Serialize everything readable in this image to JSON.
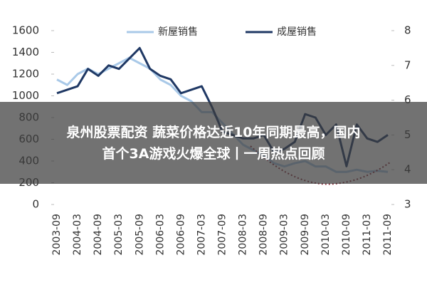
{
  "chart_data": {
    "type": "line",
    "categories": [
      "2003-09",
      null,
      "2004-03",
      null,
      "2004-09",
      null,
      "2005-03",
      null,
      "2005-09",
      null,
      "2006-03",
      null,
      "2006-09",
      null,
      "2007-03",
      null,
      "2007-09",
      null,
      "2008-03",
      null,
      "2008-09",
      null,
      "2009-03",
      null,
      "2009-09",
      null,
      "2010-03",
      null,
      "2010-09",
      null,
      "2011-03",
      null,
      "2011-09"
    ],
    "series": [
      {
        "name": "新屋销售",
        "color": "#a9c9e8",
        "values": [
          1150,
          1100,
          1200,
          1250,
          1200,
          1250,
          1300,
          1350,
          1300,
          1250,
          1150,
          1100,
          1000,
          950,
          850,
          850,
          750,
          650,
          550,
          500,
          450,
          380,
          350,
          380,
          400,
          350,
          350,
          300,
          300,
          320,
          300,
          310,
          300
        ]
      },
      {
        "name": "成屋销售",
        "color": "#1f3864",
        "axis": "y2",
        "values": [
          6.2,
          6.3,
          6.4,
          6.9,
          6.7,
          7.0,
          6.9,
          7.2,
          7.5,
          6.9,
          6.7,
          6.6,
          6.2,
          6.3,
          6.4,
          5.8,
          5.1,
          5.0,
          4.9,
          4.9,
          5.0,
          4.5,
          4.6,
          4.8,
          5.6,
          5.5,
          5.0,
          5.3,
          4.1,
          5.3,
          4.9,
          4.8,
          5.0
        ]
      }
    ],
    "ylim": [
      0,
      1600
    ],
    "yticks": [
      0,
      200,
      400,
      600,
      800,
      1000,
      1200,
      1400,
      1600
    ],
    "y2lim": [
      3,
      8
    ],
    "y2ticks": [
      3,
      4,
      5,
      6,
      7,
      8
    ],
    "legend": "top",
    "grid": false
  },
  "overlay_title": [
    "泉州股票配资 蔬菜价格达近10年同期最高，国内",
    "首个3A游戏火爆全球丨一周热点回顾"
  ]
}
